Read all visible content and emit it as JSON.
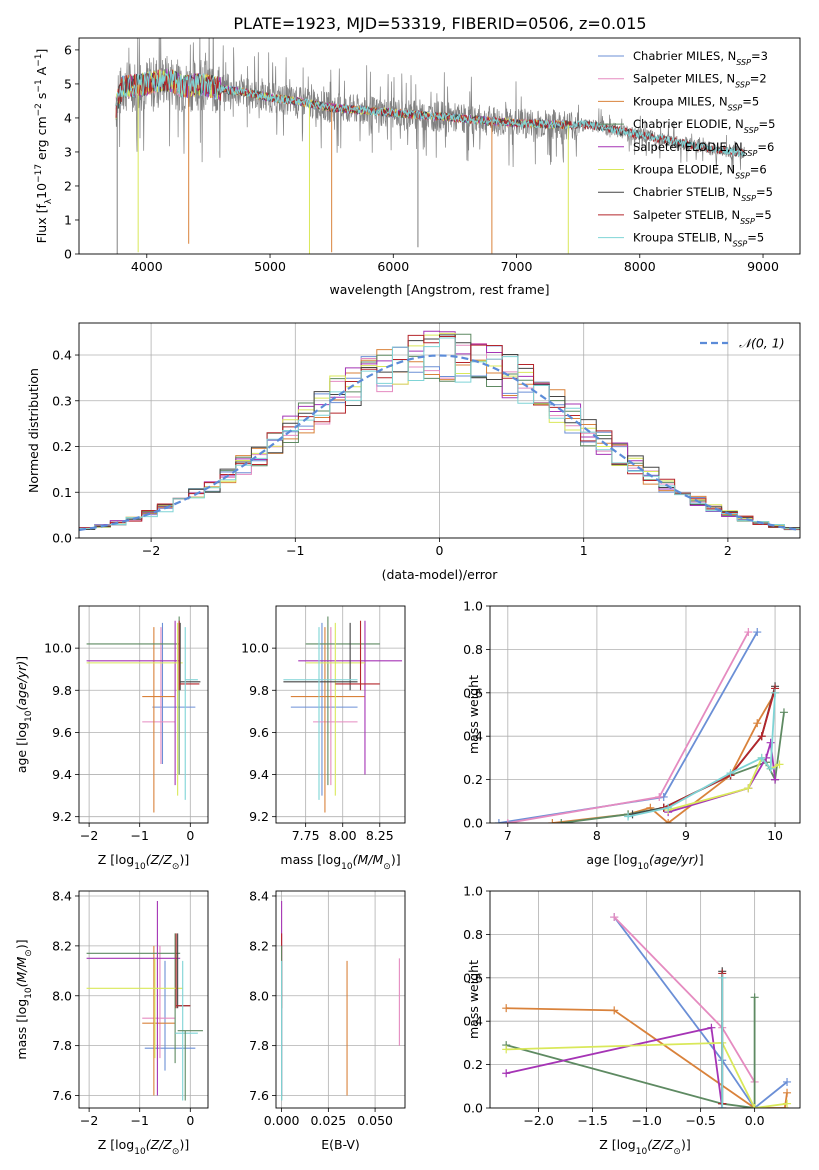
{
  "figure": {
    "title": "PLATE=1923, MJD=53319, FIBERID=0506, z=0.015"
  },
  "colors": {
    "Chabrier MILES": "#6b8fd6",
    "Salpeter MILES": "#e58bc0",
    "Kroupa MILES": "#d9823b",
    "Chabrier ELODIE": "#5e8a62",
    "Salpeter ELODIE": "#a534b5",
    "Kroupa ELODIE": "#d9e85a",
    "Chabrier STELIB": "#444444",
    "Salpeter STELIB": "#b5262b",
    "Kroupa STELIB": "#7fd4d6",
    "data": "#808080",
    "normal": "#5b8bd8"
  },
  "chart_data": [
    {
      "id": "spectrum",
      "type": "line",
      "title": "PLATE=1923, MJD=53319, FIBERID=0506, z=0.015",
      "xlabel": "wavelength [Angstrom, rest frame]",
      "ylabel_main": "Flux [f",
      "ylabel_sub": "λ",
      "ylabel_mid": "10",
      "ylabel_sup1": "−17",
      "ylabel_tail1": " erg cm",
      "ylabel_sup2": "−2",
      "ylabel_tail2": " s",
      "ylabel_sup3": "−1",
      "ylabel_tail3": " A",
      "ylabel_sup4": "−1",
      "ylabel_end": "]",
      "xlim": [
        3450,
        9300
      ],
      "ylim": [
        0,
        6.35
      ],
      "xticks": [
        4000,
        5000,
        6000,
        7000,
        8000,
        9000
      ],
      "yticks": [
        0,
        1,
        2,
        3,
        4,
        5,
        6
      ],
      "legend_position": "top-right",
      "legend": [
        {
          "model": "Chabrier MILES",
          "n": "3"
        },
        {
          "model": "Salpeter MILES",
          "n": "2"
        },
        {
          "model": "Kroupa MILES",
          "n": "5"
        },
        {
          "model": "Chabrier ELODIE",
          "n": "5"
        },
        {
          "model": "Salpeter ELODIE",
          "n": "6"
        },
        {
          "model": "Kroupa ELODIE",
          "n": "6"
        },
        {
          "model": "Chabrier STELIB",
          "n": "5"
        },
        {
          "model": "Salpeter STELIB",
          "n": "5"
        },
        {
          "model": "Kroupa STELIB",
          "n": "5"
        }
      ],
      "continuum": [
        [
          3750,
          4.3
        ],
        [
          3800,
          4.9
        ],
        [
          3900,
          4.95
        ],
        [
          4000,
          5.0
        ],
        [
          4100,
          5.1
        ],
        [
          4200,
          5.1
        ],
        [
          4300,
          4.9
        ],
        [
          4400,
          5.0
        ],
        [
          4500,
          4.95
        ],
        [
          4600,
          4.85
        ],
        [
          4800,
          4.75
        ],
        [
          5000,
          4.6
        ],
        [
          5200,
          4.5
        ],
        [
          5500,
          4.3
        ],
        [
          6000,
          4.15
        ],
        [
          6500,
          4.0
        ],
        [
          7000,
          3.85
        ],
        [
          7400,
          3.8
        ],
        [
          7600,
          3.8
        ],
        [
          8000,
          3.5
        ],
        [
          8500,
          3.15
        ],
        [
          8850,
          2.95
        ]
      ],
      "dips": [
        [
          3760,
          0.0
        ],
        [
          3930,
          0.05
        ],
        [
          4340,
          0.3
        ],
        [
          5320,
          0.0
        ],
        [
          5500,
          0.05
        ],
        [
          6200,
          0.2
        ],
        [
          6800,
          0.02
        ],
        [
          7420,
          0.02
        ]
      ]
    },
    {
      "id": "residuals",
      "type": "histogram",
      "xlabel": "(data-model)/error",
      "ylabel": "Normed distribution",
      "xlim": [
        -2.5,
        2.5
      ],
      "ylim": [
        0,
        0.47
      ],
      "xticks": [
        -2,
        -1,
        0,
        1,
        2
      ],
      "yticks": [
        0.0,
        0.1,
        0.2,
        0.3,
        0.4
      ],
      "legend_label": "𝒩(0, 1)",
      "legend_position": "top-right",
      "bins": 46,
      "grid": true
    },
    {
      "id": "age-vs-z",
      "type": "errorbar",
      "xlabel_text": "Z [log",
      "xlabel_sub": "10",
      "xlabel_it": "(Z/Z",
      "xlabel_sun": "⊙",
      "xlabel_end": ")]",
      "ylabel_text": "age  [log",
      "ylabel_sub": "10",
      "ylabel_it": "(age/yr)",
      "ylabel_end": "]",
      "xlim": [
        -2.2,
        0.35
      ],
      "ylim": [
        9.17,
        10.2
      ],
      "xticks": [
        -2,
        -1,
        0
      ],
      "yticks": [
        9.2,
        9.4,
        9.6,
        9.8,
        10.0
      ],
      "points": [
        {
          "model": "Chabrier MILES",
          "x": -0.1,
          "xerr": 0.0,
          "y": 9.72,
          "yerr": 0.0,
          "xl": -0.75,
          "xr": 0.1,
          "yl": 9.72,
          "yh": 9.72,
          "vx": -0.55,
          "vl": 9.45,
          "vh": 10.12
        },
        {
          "model": "Salpeter MILES",
          "x": -0.58,
          "y": 9.65,
          "xl": -0.95,
          "xr": -0.3,
          "vx": -0.58,
          "vl": 9.45,
          "vh": 10.1
        },
        {
          "model": "Kroupa MILES",
          "x": -0.72,
          "y": 9.77,
          "xl": -0.95,
          "xr": -0.3,
          "vx": -0.72,
          "vl": 9.22,
          "vh": 10.1
        },
        {
          "model": "Chabrier ELODIE",
          "x": -0.22,
          "y": 10.02,
          "xl": -2.05,
          "xr": -0.2,
          "vx": -0.22,
          "vl": 9.4,
          "vh": 10.15
        },
        {
          "model": "Salpeter ELODIE",
          "x": -0.3,
          "y": 9.94,
          "xl": -2.05,
          "xr": -0.2,
          "vx": -0.3,
          "vl": 9.35,
          "vh": 10.13
        },
        {
          "model": "Kroupa ELODIE",
          "x": -0.25,
          "y": 9.93,
          "xl": -2.05,
          "xr": -0.15,
          "vx": -0.25,
          "vl": 9.3,
          "vh": 10.12
        },
        {
          "model": "Chabrier STELIB",
          "x": -0.2,
          "y": 9.84,
          "xl": -0.2,
          "xr": 0.2,
          "vx": -0.2,
          "vl": 9.8,
          "vh": 10.12
        },
        {
          "model": "Salpeter STELIB",
          "x": -0.22,
          "y": 9.83,
          "xl": -0.22,
          "xr": 0.18,
          "vx": -0.22,
          "vl": 9.8,
          "vh": 10.13
        },
        {
          "model": "Kroupa STELIB",
          "x": -0.1,
          "y": 9.85,
          "xl": -0.1,
          "xr": 0.15,
          "vx": -0.1,
          "vl": 9.28,
          "vh": 10.1
        }
      ]
    },
    {
      "id": "age-vs-mass",
      "type": "errorbar",
      "xlabel_text": "mass [log",
      "xlabel_sub": "10",
      "xlabel_it": "(M/M",
      "xlabel_sun": "⊙",
      "xlabel_end": ")]",
      "xlim": [
        7.55,
        8.42
      ],
      "ylim": [
        9.17,
        10.2
      ],
      "xticks": [
        7.75,
        8.0,
        8.25
      ],
      "xtick_labels": [
        "7.75",
        "8.00",
        "8.25"
      ],
      "yticks": [
        9.2,
        9.4,
        9.6,
        9.8,
        10.0
      ],
      "points": [
        {
          "model": "Chabrier MILES",
          "hy": 9.72,
          "xl": 7.65,
          "xr": 8.1,
          "vx": 7.86,
          "vl": 9.3,
          "vh": 10.12
        },
        {
          "model": "Salpeter MILES",
          "hy": 9.65,
          "xl": 7.8,
          "xr": 8.1,
          "vx": 7.92,
          "vl": 9.35,
          "vh": 10.1
        },
        {
          "model": "Kroupa MILES",
          "hy": 9.77,
          "xl": 7.65,
          "xr": 8.15,
          "vx": 7.88,
          "vl": 9.22,
          "vh": 10.1
        },
        {
          "model": "Chabrier ELODIE",
          "hy": 10.02,
          "xl": 7.75,
          "xr": 8.25,
          "vx": 7.9,
          "vl": 9.35,
          "vh": 10.15
        },
        {
          "model": "Salpeter ELODIE",
          "hy": 9.94,
          "xl": 7.7,
          "xr": 8.4,
          "vx": 8.15,
          "vl": 9.4,
          "vh": 10.13
        },
        {
          "model": "Kroupa ELODIE",
          "hy": 9.93,
          "xl": 7.75,
          "xr": 8.15,
          "vx": 7.95,
          "vl": 9.3,
          "vh": 10.12
        },
        {
          "model": "Chabrier STELIB",
          "hy": 9.84,
          "xl": 7.6,
          "xr": 8.1,
          "vx": 8.05,
          "vl": 9.8,
          "vh": 10.12
        },
        {
          "model": "Salpeter STELIB",
          "hy": 9.83,
          "xl": 7.95,
          "xr": 8.25,
          "vx": 8.12,
          "vl": 9.8,
          "vh": 10.13
        },
        {
          "model": "Kroupa STELIB",
          "hy": 9.85,
          "xl": 7.6,
          "xr": 8.1,
          "vx": 7.84,
          "vl": 9.28,
          "vh": 10.1
        }
      ]
    },
    {
      "id": "weight-vs-age",
      "type": "line",
      "ylabel": "mass weight",
      "xlabel_text": "age  [log",
      "xlabel_sub": "10",
      "xlabel_it": "(age/yr)",
      "xlabel_end": "]",
      "xlim": [
        6.8,
        10.28
      ],
      "ylim": [
        0,
        1.0
      ],
      "xticks": [
        7,
        8,
        9,
        10
      ],
      "yticks": [
        0.0,
        0.2,
        0.4,
        0.6,
        0.8,
        1.0
      ],
      "series": [
        {
          "model": "Chabrier MILES",
          "x": [
            6.9,
            8.75,
            9.8
          ],
          "y": [
            0.0,
            0.12,
            0.88
          ]
        },
        {
          "model": "Salpeter MILES",
          "x": [
            7.0,
            8.7,
            9.7
          ],
          "y": [
            0.0,
            0.12,
            0.88
          ]
        },
        {
          "model": "Kroupa MILES",
          "x": [
            7.5,
            8.35,
            8.6,
            8.8,
            9.5,
            9.8,
            10.0
          ],
          "y": [
            0.0,
            0.04,
            0.07,
            0.0,
            0.22,
            0.46,
            0.6
          ]
        },
        {
          "model": "Chabrier ELODIE",
          "x": [
            7.6,
            8.35,
            8.75,
            9.5,
            9.9,
            10.0,
            10.1
          ],
          "y": [
            0.0,
            0.04,
            0.07,
            0.22,
            0.28,
            0.2,
            0.51
          ]
        },
        {
          "model": "Salpeter ELODIE",
          "x": [
            8.8,
            9.7,
            9.9,
            9.95,
            10.0
          ],
          "y": [
            0.05,
            0.16,
            0.3,
            0.37,
            0.2
          ]
        },
        {
          "model": "Kroupa ELODIE",
          "x": [
            8.8,
            9.7,
            9.85,
            9.95,
            10.05
          ],
          "y": [
            0.06,
            0.16,
            0.3,
            0.25,
            0.27
          ]
        },
        {
          "model": "Chabrier STELIB",
          "x": [
            8.4,
            8.75,
            9.5,
            9.85,
            10.0
          ],
          "y": [
            0.04,
            0.07,
            0.22,
            0.4,
            0.63
          ]
        },
        {
          "model": "Salpeter STELIB",
          "x": [
            8.75,
            9.5,
            9.85,
            10.0
          ],
          "y": [
            0.07,
            0.22,
            0.4,
            0.62
          ]
        },
        {
          "model": "Kroupa STELIB",
          "x": [
            8.35,
            8.8,
            9.5,
            9.85,
            9.95,
            10.0
          ],
          "y": [
            0.03,
            0.07,
            0.23,
            0.3,
            0.25,
            0.6
          ]
        }
      ]
    },
    {
      "id": "mass-vs-z",
      "type": "errorbar",
      "ylabel_text": "mass [log",
      "ylabel_sub": "10",
      "ylabel_it": "(M/M",
      "ylabel_sun": "⊙",
      "ylabel_end": ")]",
      "xlim": [
        -2.2,
        0.35
      ],
      "ylim": [
        7.55,
        8.42
      ],
      "xticks": [
        -2,
        -1,
        0
      ],
      "yticks": [
        7.6,
        7.8,
        8.0,
        8.2,
        8.4
      ],
      "points": [
        {
          "model": "Chabrier MILES",
          "hy": 7.79,
          "xl": -0.9,
          "xr": 0.1,
          "vx": -0.5,
          "vl": 7.7,
          "vh": 8.14
        },
        {
          "model": "Salpeter MILES",
          "hy": 7.91,
          "xl": -0.95,
          "xr": -0.3,
          "vx": -0.6,
          "vl": 7.75,
          "vh": 8.2
        },
        {
          "model": "Kroupa MILES",
          "hy": 7.89,
          "xl": -0.95,
          "xr": -0.3,
          "vx": -0.72,
          "vl": 7.6,
          "vh": 8.2
        },
        {
          "model": "Chabrier ELODIE",
          "hy": 8.17,
          "xl": -2.05,
          "xr": -0.2,
          "vx": -0.3,
          "vl": 7.73,
          "vh": 8.25
        },
        {
          "model": "Salpeter ELODIE",
          "hy": 8.15,
          "xl": -2.05,
          "xr": -0.2,
          "vx": -0.65,
          "vl": 7.6,
          "vh": 8.38
        },
        {
          "model": "Kroupa ELODIE",
          "hy": 8.03,
          "xl": -2.05,
          "xr": -0.15,
          "vx": -0.7,
          "vl": 7.75,
          "vh": 8.15
        },
        {
          "model": "Chabrier STELIB",
          "hy": 7.96,
          "xl": -0.25,
          "xr": 0.0,
          "vx": -0.25,
          "vl": 7.95,
          "vh": 8.25
        },
        {
          "model": "Salpeter STELIB",
          "hy": 7.96,
          "xl": -0.28,
          "xr": 0.0,
          "vx": -0.28,
          "vl": 7.95,
          "vh": 8.25
        },
        {
          "model": "Kroupa STELIB",
          "hy": 7.85,
          "xl": -0.3,
          "xr": 0.15,
          "vx": -0.15,
          "vl": 7.58,
          "vh": 8.14
        },
        {
          "model": "Chabrier ELODIE",
          "hy": 7.86,
          "xl": -0.25,
          "xr": 0.25,
          "vx": -0.1,
          "vl": 7.58,
          "vh": 7.86
        }
      ]
    },
    {
      "id": "mass-vs-ebv",
      "type": "errorbar",
      "xlabel": "E(B-V)",
      "xlim": [
        -0.003,
        0.066
      ],
      "ylim": [
        7.55,
        8.42
      ],
      "xticks": [
        0.0,
        0.025,
        0.05
      ],
      "xtick_labels": [
        "0.000",
        "0.025",
        "0.050"
      ],
      "yticks": [
        7.6,
        7.8,
        8.0,
        8.2,
        8.4
      ],
      "points": [
        {
          "model": "Salpeter ELODIE",
          "vx": 0.0,
          "vl": 7.6,
          "vh": 8.38
        },
        {
          "model": "Salpeter STELIB",
          "vx": 0.0,
          "vl": 7.95,
          "vh": 8.25
        },
        {
          "model": "Chabrier ELODIE",
          "vx": 0.0,
          "vl": 7.58,
          "vh": 8.2
        },
        {
          "model": "Kroupa STELIB",
          "vx": 0.0,
          "vl": 7.58,
          "vh": 8.14
        },
        {
          "model": "Kroupa MILES",
          "vx": 0.035,
          "vl": 7.6,
          "vh": 8.14
        },
        {
          "model": "Salpeter MILES",
          "vx": 0.063,
          "vl": 7.8,
          "vh": 8.15
        }
      ]
    },
    {
      "id": "weight-vs-z",
      "type": "line",
      "ylabel": "mass weight",
      "xlabel_text": "Z [log",
      "xlabel_sub": "10",
      "xlabel_it": "(Z/Z",
      "xlabel_sun": "⊙",
      "xlabel_end": ")]",
      "xlim": [
        -2.45,
        0.42
      ],
      "ylim": [
        0,
        1.0
      ],
      "xticks": [
        -2.0,
        -1.5,
        -1.0,
        -0.5,
        0.0
      ],
      "xtick_labels": [
        "−2.0",
        "−1.5",
        "−1.0",
        "−0.5",
        "0.0"
      ],
      "yticks": [
        0.0,
        0.2,
        0.4,
        0.6,
        0.8,
        1.0
      ],
      "series": [
        {
          "model": "Chabrier MILES",
          "x": [
            -1.3,
            -0.3,
            0.0,
            0.3
          ],
          "y": [
            0.88,
            0.22,
            0.0,
            0.12
          ]
        },
        {
          "model": "Salpeter MILES",
          "x": [
            -1.3,
            -0.3,
            0.0
          ],
          "y": [
            0.88,
            0.37,
            0.12
          ]
        },
        {
          "model": "Kroupa MILES",
          "x": [
            -2.3,
            -1.3,
            0.0,
            0.28,
            0.3
          ],
          "y": [
            0.46,
            0.45,
            0.0,
            0.0,
            0.07
          ]
        },
        {
          "model": "Chabrier ELODIE",
          "x": [
            -2.3,
            -0.3,
            0.0,
            0.0
          ],
          "y": [
            0.29,
            0.02,
            0.0,
            0.51
          ]
        },
        {
          "model": "Salpeter ELODIE",
          "x": [
            -2.3,
            -0.4,
            -0.3
          ],
          "y": [
            0.16,
            0.37,
            0.0
          ]
        },
        {
          "model": "Kroupa ELODIE",
          "x": [
            -2.3,
            -0.3,
            0.0,
            0.3
          ],
          "y": [
            0.27,
            0.3,
            0.0,
            0.02
          ]
        },
        {
          "model": "Chabrier STELIB",
          "x": [
            -0.3,
            -0.3
          ],
          "y": [
            0.63,
            0.02
          ]
        },
        {
          "model": "Salpeter STELIB",
          "x": [
            -0.3,
            -0.3
          ],
          "y": [
            0.62,
            0.02
          ]
        },
        {
          "model": "Kroupa STELIB",
          "x": [
            -0.3,
            -0.3
          ],
          "y": [
            0.6,
            0.0
          ]
        }
      ]
    }
  ]
}
